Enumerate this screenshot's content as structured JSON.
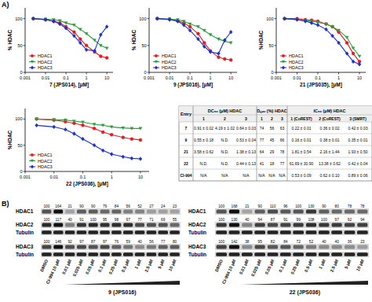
{
  "panel_labels": [
    "A)",
    "B)"
  ],
  "chart_data": [
    {
      "type": "line",
      "x_label": "7 (JPS014), [μM]",
      "y_label": "% HDAC",
      "log": "x",
      "grid": false,
      "legend": "lower left",
      "x": [
        0.0025,
        0.01,
        0.025,
        0.05,
        0.1,
        0.25,
        0.5,
        1,
        2.5,
        5,
        10
      ],
      "xlim": [
        0.001,
        20
      ],
      "xticks": [
        0.001,
        0.01,
        0.1,
        1,
        10
      ],
      "ylim": [
        0,
        120
      ],
      "yticks": [
        0,
        50,
        100
      ],
      "series": [
        {
          "name": "HDAC1",
          "color": "#e41a1c",
          "marker": "circle",
          "values": [
            100,
            98,
            95,
            92,
            85,
            75,
            62,
            50,
            38,
            30,
            27
          ]
        },
        {
          "name": "HDAC2",
          "color": "#2e9e3e",
          "marker": "triangle",
          "values": [
            100,
            99,
            98,
            96,
            92,
            88,
            80,
            72,
            60,
            50,
            45
          ]
        },
        {
          "name": "HDAC3",
          "color": "#1a2fcc",
          "marker": "diamond",
          "values": [
            100,
            98,
            95,
            90,
            82,
            68,
            55,
            42,
            40,
            70,
            85
          ]
        }
      ]
    },
    {
      "type": "line",
      "x_label": "9 (JPS016), [μM]",
      "y_label": "% HDAC",
      "log": "x",
      "grid": false,
      "legend": "lower left",
      "x": [
        0.0025,
        0.01,
        0.025,
        0.05,
        0.1,
        0.25,
        0.5,
        1,
        2.5,
        5,
        10
      ],
      "xlim": [
        0.001,
        20
      ],
      "xticks": [
        0.001,
        0.01,
        0.1,
        1,
        10
      ],
      "ylim": [
        0,
        120
      ],
      "yticks": [
        0,
        50,
        100
      ],
      "series": [
        {
          "name": "HDAC1",
          "color": "#e41a1c",
          "marker": "circle",
          "values": [
            100,
            99,
            96,
            92,
            85,
            72,
            55,
            40,
            28,
            25,
            23
          ]
        },
        {
          "name": "HDAC2",
          "color": "#2e9e3e",
          "marker": "triangle",
          "values": [
            100,
            99,
            98,
            95,
            90,
            85,
            78,
            70,
            62,
            58,
            55
          ]
        },
        {
          "name": "HDAC3",
          "color": "#1a2fcc",
          "marker": "diamond",
          "values": [
            100,
            98,
            95,
            88,
            78,
            62,
            48,
            38,
            35,
            60,
            75
          ]
        }
      ]
    },
    {
      "type": "line",
      "x_label": "21 (JPS035), [μM]",
      "y_label": "%HDAC",
      "log": "x",
      "grid": false,
      "legend": "lower left",
      "x": [
        0.0025,
        0.01,
        0.025,
        0.05,
        0.1,
        0.25,
        0.5,
        1,
        2.5,
        5,
        10
      ],
      "xlim": [
        0.001,
        20
      ],
      "xticks": [
        0.001,
        0.01,
        0.1,
        1,
        10
      ],
      "ylim": [
        0,
        120
      ],
      "yticks": [
        0,
        50,
        100
      ],
      "series": [
        {
          "name": "HDAC1",
          "color": "#e41a1c",
          "marker": "circle",
          "values": [
            100,
            100,
            98,
            97,
            95,
            90,
            85,
            75,
            55,
            35,
            20
          ]
        },
        {
          "name": "HDAC2",
          "color": "#2e9e3e",
          "marker": "triangle",
          "values": [
            100,
            98,
            96,
            95,
            93,
            90,
            85,
            78,
            65,
            45,
            30
          ]
        },
        {
          "name": "HDAC3",
          "color": "#1a2fcc",
          "marker": "diamond",
          "values": [
            100,
            98,
            95,
            92,
            88,
            80,
            68,
            55,
            35,
            20,
            15
          ]
        }
      ]
    },
    {
      "type": "line",
      "x_label": "22 (JPS036), [μM]",
      "y_label": "%HDAC",
      "log": "x",
      "grid": false,
      "legend": "lower left",
      "x": [
        0.0025,
        0.01,
        0.025,
        0.05,
        0.1,
        0.25,
        0.5,
        1,
        2.5,
        5,
        10
      ],
      "xlim": [
        0.001,
        20
      ],
      "xticks": [
        0.001,
        0.01,
        0.1,
        1,
        10
      ],
      "ylim": [
        0,
        120
      ],
      "yticks": [
        0,
        50,
        100
      ],
      "series": [
        {
          "name": "HDAC1",
          "color": "#e41a1c",
          "marker": "circle",
          "values": [
            100,
            98,
            95,
            92,
            88,
            82,
            75,
            70,
            65,
            62,
            60
          ]
        },
        {
          "name": "HDAC2",
          "color": "#2e9e3e",
          "marker": "triangle",
          "values": [
            100,
            99,
            98,
            96,
            94,
            90,
            88,
            85,
            83,
            82,
            82
          ]
        },
        {
          "name": "HDAC3",
          "color": "#1a2fcc",
          "marker": "diamond",
          "values": [
            88,
            85,
            80,
            72,
            62,
            50,
            40,
            33,
            28,
            25,
            24
          ]
        }
      ]
    }
  ],
  "table": {
    "header": [
      "Entry",
      "DC₅₀ (μM) HDAC",
      "Dₘₐₓ (%) HDAC",
      "IC₅₀ (μM) HDAC"
    ],
    "subheader": [
      "1",
      "2",
      "3",
      "1",
      "2",
      "3",
      "1 (CoREST)",
      "2 (CoREST)",
      "3 (SMRT)"
    ],
    "rows": [
      [
        "7",
        "0.91 ± 0.02",
        "4.19 ± 1.02",
        "0.64 ± 0.03",
        "74",
        "56",
        "63",
        "0.22 ± 0.01",
        "0.36 ± 0.02",
        "0.42 ± 0.03"
      ],
      [
        "9",
        "0.55 ± 0.18",
        "N.D.",
        "0.53 ± 0.04",
        "77",
        "45",
        "66",
        "0.16 ± 0.01",
        "0.38 ± 0.01",
        "0.35 ± 0.01"
      ],
      [
        "21",
        "3.58 ± 0.62",
        "N.D.",
        "1.38 ± 0.13",
        "64",
        "29",
        "78",
        "1.81 ± 0.54",
        "2.16 ± 1.44",
        "1.93 ± 0.50"
      ],
      [
        "22",
        "N.D.",
        "N.D.",
        "0.44 ± 0.13",
        "41",
        "18",
        "77",
        "61.69 ± 30.90",
        "13.38 ± 0.62",
        "0.42 ± 0.04"
      ],
      [
        "CI-994",
        "N/A",
        "N/A",
        "N/A",
        "N/A",
        "N/A",
        "N/A",
        "0.53 ± 0.09",
        "0.62 ± 0.10",
        "0.89 ± 0.06"
      ]
    ]
  },
  "blots": [
    {
      "compound": "9 (JPS016)",
      "lanes": [
        "DMSO",
        "CI-994 10 μM",
        "0.01 μM",
        "0.025 μM",
        "0.05 μM",
        "0.1 μM",
        "0.25 μM",
        "0.5 μM",
        "1 μM",
        "2.5 μM",
        "5 μM",
        "10 μM"
      ],
      "rows": [
        {
          "label": "HDAC1",
          "values": [
            100,
            164,
            21,
            90,
            90,
            79,
            84,
            56,
            52,
            27,
            24,
            23
          ]
        },
        {
          "label": "HDAC2",
          "values": [
            100,
            117,
            40,
            91,
            100,
            95,
            98,
            97,
            77,
            71,
            69,
            55
          ]
        },
        {
          "label": "Tubulin"
        },
        {
          "label": "HDAC3",
          "values": [
            100,
            146,
            92,
            97,
            87,
            97,
            76,
            59,
            40,
            56,
            77,
            80
          ]
        },
        {
          "label": "Tubulin"
        }
      ]
    },
    {
      "compound": "22 (JPS036)",
      "lanes": [
        "DMSO",
        "CI-994 10 μM",
        "0.01 μM",
        "0.025 μM",
        "0.05 μM",
        "0.1 μM",
        "0.25 μM",
        "0.5 μM",
        "1 μM",
        "2.5 μM",
        "5 μM",
        "10 μM"
      ],
      "rows": [
        {
          "label": "HDAC1",
          "values": [
            100,
            168,
            21,
            90,
            110,
            96,
            100,
            130,
            90,
            80,
            78,
            78
          ]
        },
        {
          "label": "HDAC2",
          "values": [
            100,
            130,
            40,
            94,
            87,
            91,
            99,
            108,
            100,
            97,
            92,
            94
          ]
        },
        {
          "label": "Tubulin"
        },
        {
          "label": "HDAC3",
          "values": [
            100,
            142,
            38,
            95,
            82,
            84,
            72,
            52,
            40,
            40,
            36,
            23
          ]
        },
        {
          "label": "Tubulin"
        }
      ]
    }
  ]
}
